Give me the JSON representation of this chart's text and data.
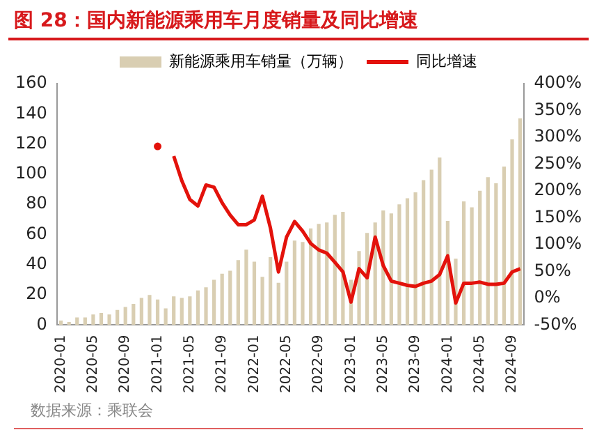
{
  "chart_data": {
    "type": "bar",
    "title": "图 28：国内新能源乘用车月度销量及同比增速",
    "annotations": [
      "数据来源：乘联会"
    ],
    "categories": [
      "2020-01",
      null,
      null,
      null,
      "2020-05",
      null,
      null,
      null,
      "2020-09",
      null,
      null,
      null,
      "2021-01",
      null,
      null,
      null,
      "2021-05",
      null,
      null,
      null,
      "2021-09",
      null,
      null,
      null,
      "2022-01",
      null,
      null,
      null,
      "2022-05",
      null,
      null,
      null,
      "2022-09",
      null,
      null,
      null,
      "2023-01",
      null,
      null,
      null,
      "2023-05",
      null,
      null,
      null,
      "2023-09",
      null,
      null,
      null,
      "2024-01",
      null,
      null,
      null,
      "2024-05",
      null,
      null,
      null,
      "2024-09",
      null
    ],
    "series": [
      {
        "name": "新能源乘用车销量（万辆）",
        "color": "#d9ceb2",
        "values": [
          3,
          2,
          5,
          5,
          7,
          8,
          7,
          10,
          12,
          14,
          18,
          20,
          17,
          11,
          19,
          18,
          19,
          23,
          25,
          30,
          34,
          36,
          43,
          50,
          42,
          32,
          45,
          28,
          42,
          56,
          55,
          64,
          67,
          68,
          73,
          75,
          30,
          49,
          61,
          68,
          76,
          74,
          80,
          84,
          88,
          96,
          103,
          111,
          69,
          44,
          82,
          78,
          89,
          98,
          94,
          105,
          123,
          137
        ]
      },
      {
        "name": "同比增速",
        "type": "line",
        "axis": "y2",
        "color": "#e3120b",
        "values": [
          null,
          null,
          null,
          null,
          null,
          null,
          null,
          null,
          null,
          null,
          null,
          null,
          283,
          null,
          265,
          219,
          184,
          172,
          211,
          207,
          178,
          155,
          137,
          137,
          146,
          190,
          131,
          49,
          114,
          143,
          125,
          102,
          90,
          84,
          67,
          49,
          -7,
          55,
          38,
          114,
          61,
          32,
          28,
          24,
          22,
          28,
          32,
          44,
          79,
          -9,
          28,
          28,
          30,
          26,
          26,
          28,
          49,
          55
        ]
      }
    ],
    "ylim": [
      0,
      160
    ],
    "yticks": [
      0,
      20,
      40,
      60,
      80,
      100,
      120,
      140,
      160
    ],
    "y2lim": [
      -50,
      400
    ],
    "y2ticks": [
      {
        "value": -50,
        "label": "-50%"
      },
      {
        "value": 0,
        "label": "0%"
      },
      {
        "value": 50,
        "label": "50%"
      },
      {
        "value": 100,
        "label": "100%"
      },
      {
        "value": 150,
        "label": "150%"
      },
      {
        "value": 200,
        "label": "200%"
      },
      {
        "value": 250,
        "label": "250%"
      },
      {
        "value": 300,
        "label": "300%"
      },
      {
        "value": 350,
        "label": "350%"
      },
      {
        "value": 400,
        "label": "400%"
      }
    ],
    "grid": false,
    "legend": "top",
    "line_style": "solid",
    "marker": "none"
  }
}
